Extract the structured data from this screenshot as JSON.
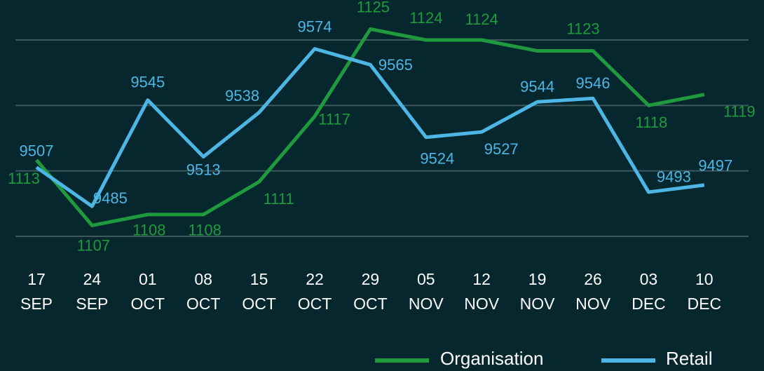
{
  "chart_data": {
    "type": "line",
    "categories": [
      [
        "17",
        "SEP"
      ],
      [
        "24",
        "SEP"
      ],
      [
        "01",
        "OCT"
      ],
      [
        "08",
        "OCT"
      ],
      [
        "15",
        "OCT"
      ],
      [
        "22",
        "OCT"
      ],
      [
        "29",
        "OCT"
      ],
      [
        "05",
        "NOV"
      ],
      [
        "12",
        "NOV"
      ],
      [
        "19",
        "NOV"
      ],
      [
        "26",
        "NOV"
      ],
      [
        "03",
        "DEC"
      ],
      [
        "10",
        "DEC"
      ]
    ],
    "series": [
      {
        "name": "Organisation",
        "color": "#1f9a3c",
        "values": [
          1113,
          1107,
          1108,
          1108,
          1111,
          1117,
          1125,
          1124,
          1124,
          1123,
          1123,
          1118,
          1119
        ]
      },
      {
        "name": "Retail",
        "color": "#4db6e4",
        "axis": "y2",
        "values": [
          9507,
          9485,
          9545,
          9513,
          9538,
          9574,
          9565,
          9524,
          9527,
          9544,
          9546,
          9493,
          9497
        ]
      }
    ],
    "ylim": [
      1106,
      1124
    ],
    "yticks": [
      1106,
      1112,
      1118,
      1124
    ],
    "y2lim": [
      9468,
      9579
    ],
    "grid": true
  }
}
